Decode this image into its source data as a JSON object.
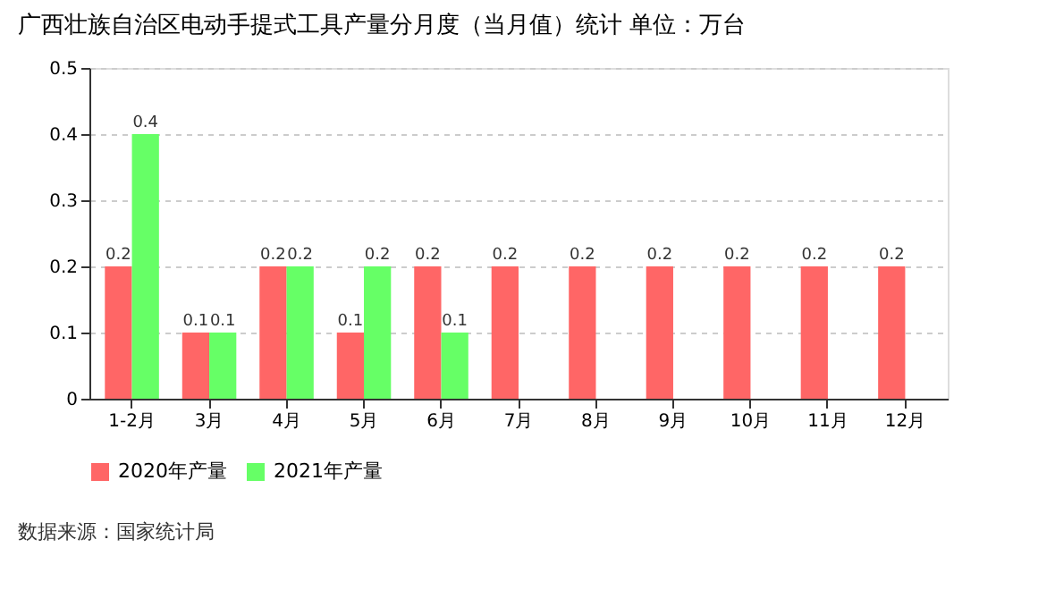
{
  "chart_data": {
    "type": "bar",
    "title": "广西壮族自治区电动手提式工具产量分月度（当月值）统计  单位：万台",
    "categories": [
      "1-2月",
      "3月",
      "4月",
      "5月",
      "6月",
      "7月",
      "8月",
      "9月",
      "10月",
      "11月",
      "12月"
    ],
    "series": [
      {
        "name": "2020年产量",
        "color": "#ff6666",
        "values": [
          0.2,
          0.1,
          0.2,
          0.1,
          0.2,
          0.2,
          0.2,
          0.2,
          0.2,
          0.2,
          0.2
        ]
      },
      {
        "name": "2021年产量",
        "color": "#66ff66",
        "values": [
          0.4,
          0.1,
          0.2,
          0.2,
          0.1,
          null,
          null,
          null,
          null,
          null,
          null
        ]
      }
    ],
    "ylim": [
      0,
      0.5
    ],
    "yticks": [
      0,
      0.1,
      0.2,
      0.3,
      0.4,
      0.5
    ],
    "grid": "y",
    "legend": "bottom",
    "data_labels": true,
    "annotations": [
      "数据来源：国家统计局"
    ]
  }
}
